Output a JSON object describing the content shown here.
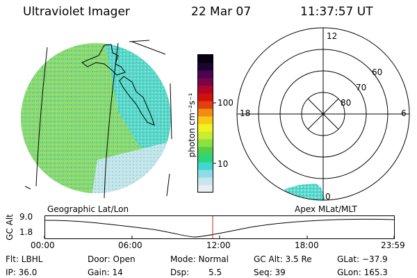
{
  "header": {
    "title": "Ultraviolet Imager",
    "date": "22 Mar 07",
    "time": "11:37:57 UT"
  },
  "colorbar": {
    "unit_label": "photon cm⁻²s⁻¹",
    "tick_labels": [
      "100",
      "10"
    ],
    "colors": [
      "#e8eef2",
      "#c7e6ec",
      "#8fdbe6",
      "#3fd7d0",
      "#2cd47c",
      "#4fd050",
      "#8ee040",
      "#c8ec30",
      "#f2f21e",
      "#f7c818",
      "#f08c10",
      "#e24010",
      "#d0100a",
      "#b0062a",
      "#7c0444",
      "#4a0450",
      "#1c0430",
      "#050010"
    ]
  },
  "polar_grid": {
    "labels": {
      "noon": "12",
      "midnight": "0",
      "dusk": "18",
      "dawn": "6"
    },
    "latitudes": [
      "60",
      "70",
      "80"
    ]
  },
  "timeline": {
    "left_caption": "Geographic Lat/Lon",
    "right_caption": "Apex MLat/MLT",
    "y_axis_label": "GC Alt",
    "y_ticks": [
      "9.0",
      "1.8"
    ],
    "x_ticks": [
      "00:00",
      "06:00",
      "12:00",
      "18:00",
      "23:59"
    ],
    "marker_color": "#cc2222"
  },
  "status": {
    "flt": "Flt: LBHL",
    "ip": "IP: 36.0",
    "door": "Door: Open",
    "gain": "Gain: 14",
    "mode": "Mode: Normal",
    "dsp_label": "Dsp:",
    "dsp_value": "5.5",
    "gc_alt": "GC Alt: 3.5 Re",
    "seq": "Seq: 39",
    "glat": "GLat: −37.9",
    "glon": "GLon: 165.3"
  }
}
